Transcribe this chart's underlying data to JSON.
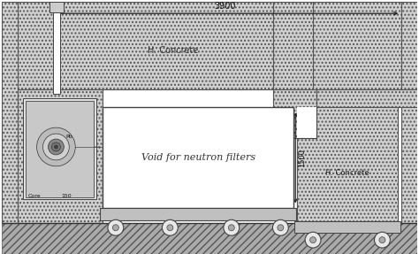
{
  "bg_color": "#ffffff",
  "concrete_color": "#d0d0d0",
  "ground_color": "#b8b8b8",
  "void_color": "#f8f8f8",
  "cart_color": "#c0c0c0",
  "wheel_color": "#e0e0e0",
  "line_color": "#444444",
  "dim_3900": "3900",
  "dim_1500": "1500",
  "label_hconcrete_top": "H. Concrete",
  "label_hconcrete_right": "H. Concrete",
  "label_void": "Void for neutron filters",
  "label_core": "Core",
  "label_pb": "Pb",
  "label_150": "150"
}
